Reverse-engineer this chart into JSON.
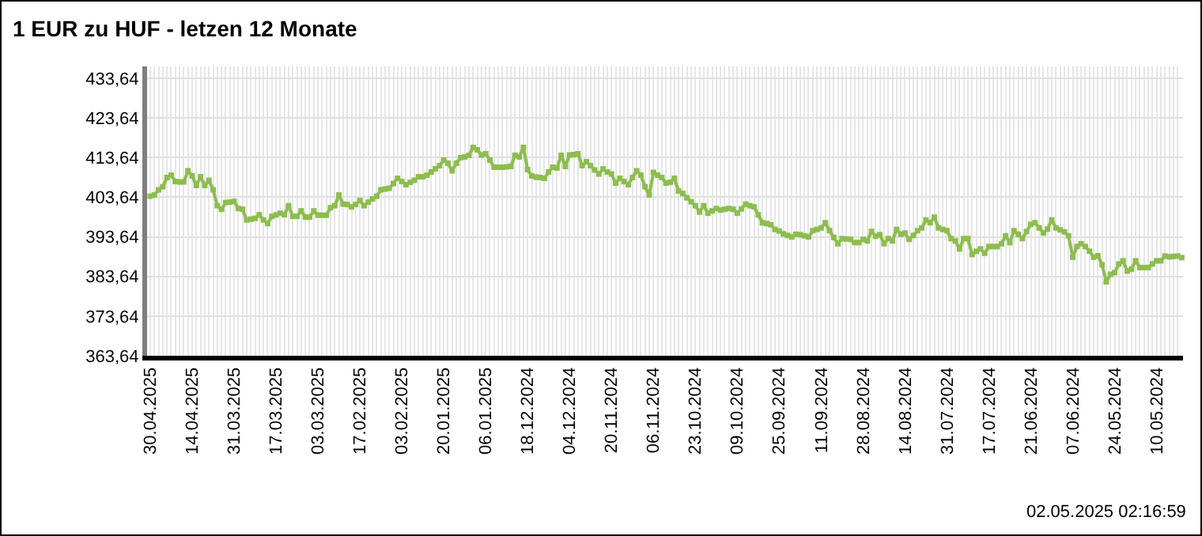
{
  "chart_data": {
    "type": "line",
    "title": "1 EUR zu HUF - letzen 12 Monate",
    "categories": [
      "30.04.2025",
      null,
      null,
      null,
      null,
      null,
      null,
      null,
      null,
      null,
      "14.04.2025",
      null,
      null,
      null,
      null,
      null,
      null,
      null,
      null,
      null,
      "31.03.2025",
      null,
      null,
      null,
      null,
      null,
      null,
      null,
      null,
      null,
      "17.03.2025",
      null,
      null,
      null,
      null,
      null,
      null,
      null,
      null,
      null,
      "03.03.2025",
      null,
      null,
      null,
      null,
      null,
      null,
      null,
      null,
      null,
      "17.02.2025",
      null,
      null,
      null,
      null,
      null,
      null,
      null,
      null,
      null,
      "03.02.2025",
      null,
      null,
      null,
      null,
      null,
      null,
      null,
      null,
      null,
      "20.01.2025",
      null,
      null,
      null,
      null,
      null,
      null,
      null,
      null,
      null,
      "06.01.2025",
      null,
      null,
      null,
      null,
      null,
      null,
      null,
      null,
      null,
      "18.12.2024",
      null,
      null,
      null,
      null,
      null,
      null,
      null,
      null,
      null,
      "04.12.2024",
      null,
      null,
      null,
      null,
      null,
      null,
      null,
      null,
      null,
      "20.11.2024",
      null,
      null,
      null,
      null,
      null,
      null,
      null,
      null,
      null,
      "06.11.2024",
      null,
      null,
      null,
      null,
      null,
      null,
      null,
      null,
      null,
      "23.10.2024",
      null,
      null,
      null,
      null,
      null,
      null,
      null,
      null,
      null,
      "09.10.2024",
      null,
      null,
      null,
      null,
      null,
      null,
      null,
      null,
      null,
      "25.09.2024",
      null,
      null,
      null,
      null,
      null,
      null,
      null,
      null,
      null,
      "11.09.2024",
      null,
      null,
      null,
      null,
      null,
      null,
      null,
      null,
      null,
      "28.08.2024",
      null,
      null,
      null,
      null,
      null,
      null,
      null,
      null,
      null,
      "14.08.2024",
      null,
      null,
      null,
      null,
      null,
      null,
      null,
      null,
      null,
      "31.07.2024",
      null,
      null,
      null,
      null,
      null,
      null,
      null,
      null,
      null,
      "17.07.2024",
      null,
      null,
      null,
      null,
      null,
      null,
      null,
      null,
      null,
      "21.06.2024",
      null,
      null,
      null,
      null,
      null,
      null,
      null,
      null,
      null,
      "07.06.2024",
      null,
      null,
      null,
      null,
      null,
      null,
      null,
      null,
      null,
      "24.05.2024",
      null,
      null,
      null,
      null,
      null,
      null,
      null,
      null,
      null,
      "10.05.2024",
      null,
      null,
      null,
      null,
      null,
      null
    ],
    "series": [
      {
        "color": "#8dbd4e",
        "values": [
          403.9,
          404.2,
          405.5,
          406.3,
          408.6,
          409.2,
          407.6,
          407.5,
          407.5,
          410.3,
          409.0,
          406.6,
          408.8,
          406.6,
          407.9,
          405.5,
          401.5,
          400.6,
          402.3,
          402.4,
          402.6,
          400.8,
          400.6,
          397.9,
          398.1,
          398.3,
          399.2,
          397.9,
          397.0,
          398.8,
          399.2,
          399.6,
          399.2,
          401.5,
          398.8,
          398.8,
          400.2,
          398.6,
          398.6,
          400.2,
          399.1,
          399.1,
          399.1,
          401.0,
          401.5,
          404.2,
          401.9,
          401.8,
          401.2,
          401.8,
          402.8,
          401.5,
          402.4,
          403.2,
          403.9,
          405.5,
          405.7,
          405.9,
          407.1,
          408.4,
          407.6,
          406.8,
          407.4,
          407.9,
          408.8,
          408.8,
          409.2,
          410.0,
          410.8,
          411.6,
          413.0,
          412.2,
          410.3,
          412.2,
          413.6,
          413.8,
          414.2,
          416.2,
          415.6,
          414.3,
          414.6,
          413.0,
          411.2,
          411.2,
          411.2,
          411.3,
          411.4,
          414.2,
          413.8,
          416.2,
          410.6,
          409.0,
          408.7,
          408.6,
          408.4,
          410.0,
          411.2,
          411.0,
          414.2,
          411.4,
          414.3,
          414.4,
          414.6,
          411.6,
          412.6,
          411.6,
          410.5,
          409.5,
          410.8,
          410.0,
          409.5,
          407.2,
          408.4,
          407.6,
          406.8,
          408.6,
          410.3,
          409.2,
          406.3,
          404.2,
          409.9,
          409.2,
          408.6,
          407.2,
          407.4,
          408.4,
          405.2,
          404.6,
          403.5,
          402.5,
          401.5,
          399.9,
          401.5,
          399.6,
          400.2,
          400.8,
          400.4,
          400.6,
          400.8,
          400.6,
          399.6,
          400.7,
          401.9,
          401.5,
          401.2,
          399.2,
          397.2,
          397.0,
          396.7,
          395.5,
          395.1,
          394.4,
          394.0,
          393.6,
          394.3,
          394.2,
          393.9,
          393.6,
          395.2,
          395.5,
          395.9,
          397.2,
          395.2,
          393.5,
          391.9,
          393.2,
          393.1,
          393.0,
          392.2,
          392.2,
          393.0,
          392.6,
          395.0,
          393.8,
          394.2,
          391.9,
          393.2,
          392.6,
          395.5,
          394.3,
          394.6,
          393.0,
          394.0,
          395.2,
          395.9,
          397.9,
          397.2,
          398.6,
          395.9,
          395.5,
          395.2,
          393.2,
          392.6,
          390.6,
          393.2,
          393.2,
          389.2,
          390.0,
          390.6,
          389.5,
          391.2,
          391.2,
          391.2,
          391.9,
          393.9,
          392.2,
          395.2,
          394.3,
          393.2,
          395.0,
          396.8,
          397.2,
          395.9,
          394.6,
          395.6,
          397.9,
          395.9,
          395.4,
          394.9,
          393.9,
          388.5,
          391.2,
          391.9,
          391.2,
          390.0,
          388.5,
          388.9,
          386.6,
          382.3,
          384.2,
          384.6,
          386.8,
          387.6,
          385.0,
          385.5,
          387.6,
          385.9,
          385.9,
          385.9,
          386.8,
          387.6,
          387.6,
          388.8,
          388.6,
          388.7,
          388.8,
          388.4
        ]
      }
    ],
    "ylim": [
      363.64,
      436.64
    ],
    "yticks": [
      {
        "value": 363.64,
        "label": "363,64"
      },
      {
        "value": 373.64,
        "label": "373,64"
      },
      {
        "value": 383.64,
        "label": "383,64"
      },
      {
        "value": 393.64,
        "label": "393,64"
      },
      {
        "value": 403.64,
        "label": "403,64"
      },
      {
        "value": 413.64,
        "label": "413,64"
      },
      {
        "value": 423.64,
        "label": "423,64"
      },
      {
        "value": 433.64,
        "label": "433,64"
      }
    ],
    "grid": true,
    "marker": "square",
    "annotations": [
      "02.05.2025 02:16:59"
    ]
  }
}
